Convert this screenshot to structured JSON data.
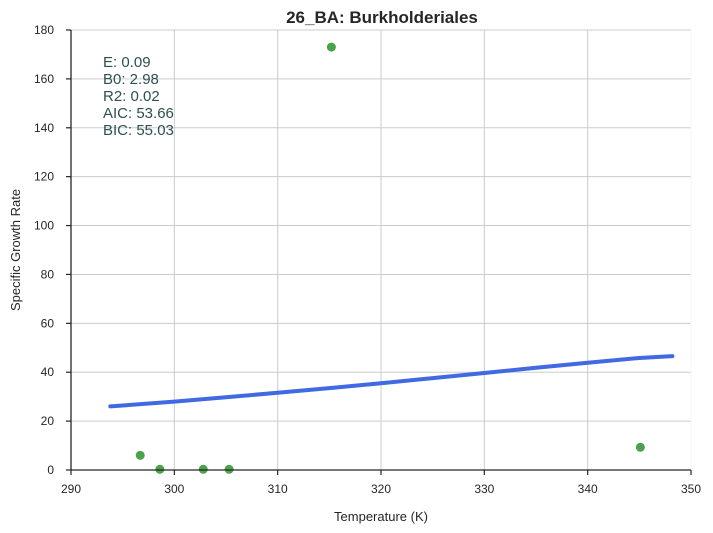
{
  "chart_data": {
    "type": "scatter",
    "title": "26_BA: Burkholderiales",
    "xlabel": "Temperature (K)",
    "ylabel": "Specific Growth Rate",
    "xlim": [
      290,
      350
    ],
    "ylim": [
      0,
      180
    ],
    "xticks": [
      "290",
      "300",
      "310",
      "320",
      "330",
      "340",
      "350"
    ],
    "yticks": [
      "0",
      "20",
      "40",
      "60",
      "80",
      "100",
      "120",
      "140",
      "160",
      "180"
    ],
    "grid": true,
    "points": {
      "color": "#4aa34a",
      "x": [
        296.7,
        298.6,
        302.8,
        305.3,
        315.2,
        345.1
      ],
      "y": [
        6,
        0.3,
        0.3,
        0.3,
        173,
        9.3
      ]
    },
    "fit_line": {
      "color": "#4169e1",
      "x": [
        293.8,
        300,
        305,
        310,
        315,
        320,
        325,
        330,
        335,
        340,
        345,
        348.2
      ],
      "y": [
        26.0,
        28.0,
        29.8,
        31.6,
        33.5,
        35.5,
        37.6,
        39.7,
        41.8,
        43.9,
        45.8,
        46.6
      ]
    },
    "annotations": [
      "E:  0.09",
      "B0:  2.98",
      "R2:  0.02",
      "AIC: 53.66",
      "BIC: 55.03"
    ]
  }
}
